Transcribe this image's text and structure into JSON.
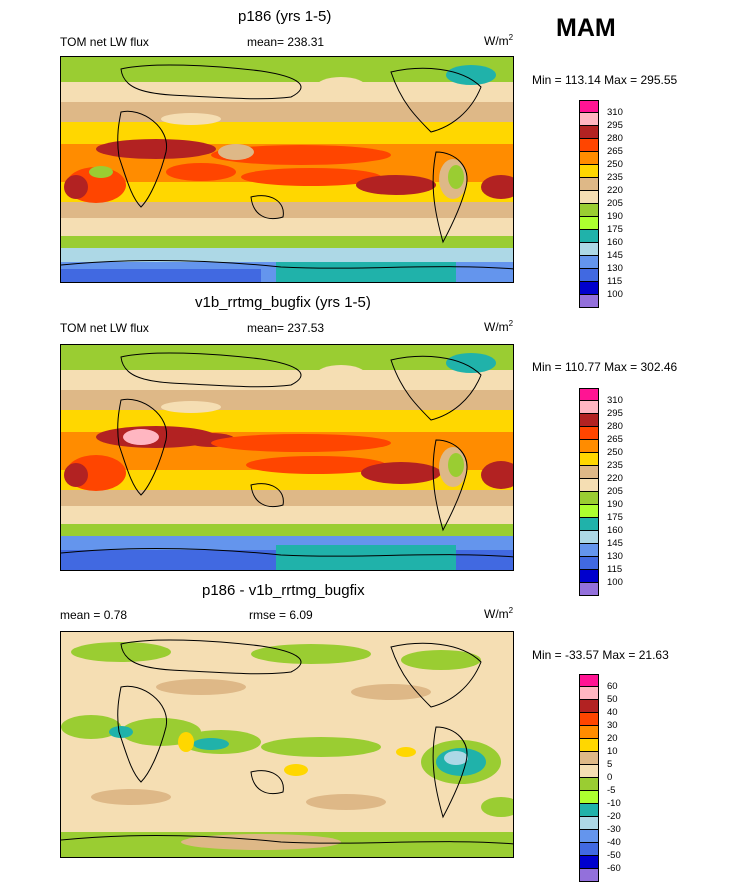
{
  "season": "MAM",
  "panels": [
    {
      "title": "p186 (yrs 1-5)",
      "left_label": "TOM net LW flux",
      "stat_label": "mean= 238.31",
      "units": "W/m",
      "units_sup": "2",
      "minmax": "Min = 113.14 Max = 295.55",
      "levels": [
        "310",
        "295",
        "280",
        "265",
        "250",
        "235",
        "220",
        "205",
        "190",
        "175",
        "160",
        "145",
        "130",
        "115",
        "100"
      ]
    },
    {
      "title": "v1b_rrtmg_bugfix (yrs 1-5)",
      "left_label": "TOM net LW flux",
      "stat_label": "mean= 237.53",
      "units": "W/m",
      "units_sup": "2",
      "minmax": "Min = 110.77 Max = 302.46",
      "levels": [
        "310",
        "295",
        "280",
        "265",
        "250",
        "235",
        "220",
        "205",
        "190",
        "175",
        "160",
        "145",
        "130",
        "115",
        "100"
      ]
    },
    {
      "title": "p186 - v1b_rrtmg_bugfix",
      "left_label": "mean =   0.78",
      "stat_label": "rmse =   6.09",
      "units": "W/m",
      "units_sup": "2",
      "minmax": "Min = -33.57 Max =  21.63",
      "levels": [
        "60",
        "50",
        "40",
        "30",
        "20",
        "10",
        "5",
        "0",
        "-5",
        "-10",
        "-20",
        "-30",
        "-40",
        "-50",
        "-60"
      ]
    }
  ],
  "colors": {
    "scale": [
      "#ff1493",
      "#ffb6c1",
      "#b22222",
      "#ff4500",
      "#ff8c00",
      "#ffd700",
      "#deb887",
      "#f5deb3",
      "#9acd32",
      "#adff2f",
      "#20b2aa",
      "#add8e6",
      "#6495ed",
      "#4169e1",
      "#0000cd",
      "#9370db"
    ]
  },
  "chart_data": [
    {
      "type": "heatmap",
      "title": "p186 (yrs 1-5)",
      "variable": "TOM net LW flux",
      "mean": 238.31,
      "min": 113.14,
      "max": 295.55,
      "units": "W/m2",
      "levels": [
        100,
        115,
        130,
        145,
        160,
        175,
        190,
        205,
        220,
        235,
        250,
        265,
        280,
        295,
        310
      ]
    },
    {
      "type": "heatmap",
      "title": "v1b_rrtmg_bugfix (yrs 1-5)",
      "variable": "TOM net LW flux",
      "mean": 237.53,
      "min": 110.77,
      "max": 302.46,
      "units": "W/m2",
      "levels": [
        100,
        115,
        130,
        145,
        160,
        175,
        190,
        205,
        220,
        235,
        250,
        265,
        280,
        295,
        310
      ]
    },
    {
      "type": "heatmap",
      "title": "p186 - v1b_rrtmg_bugfix",
      "mean": 0.78,
      "rmse": 6.09,
      "min": -33.57,
      "max": 21.63,
      "units": "W/m2",
      "levels": [
        -60,
        -50,
        -40,
        -30,
        -20,
        -10,
        -5,
        0,
        5,
        10,
        20,
        30,
        40,
        50,
        60
      ]
    }
  ]
}
